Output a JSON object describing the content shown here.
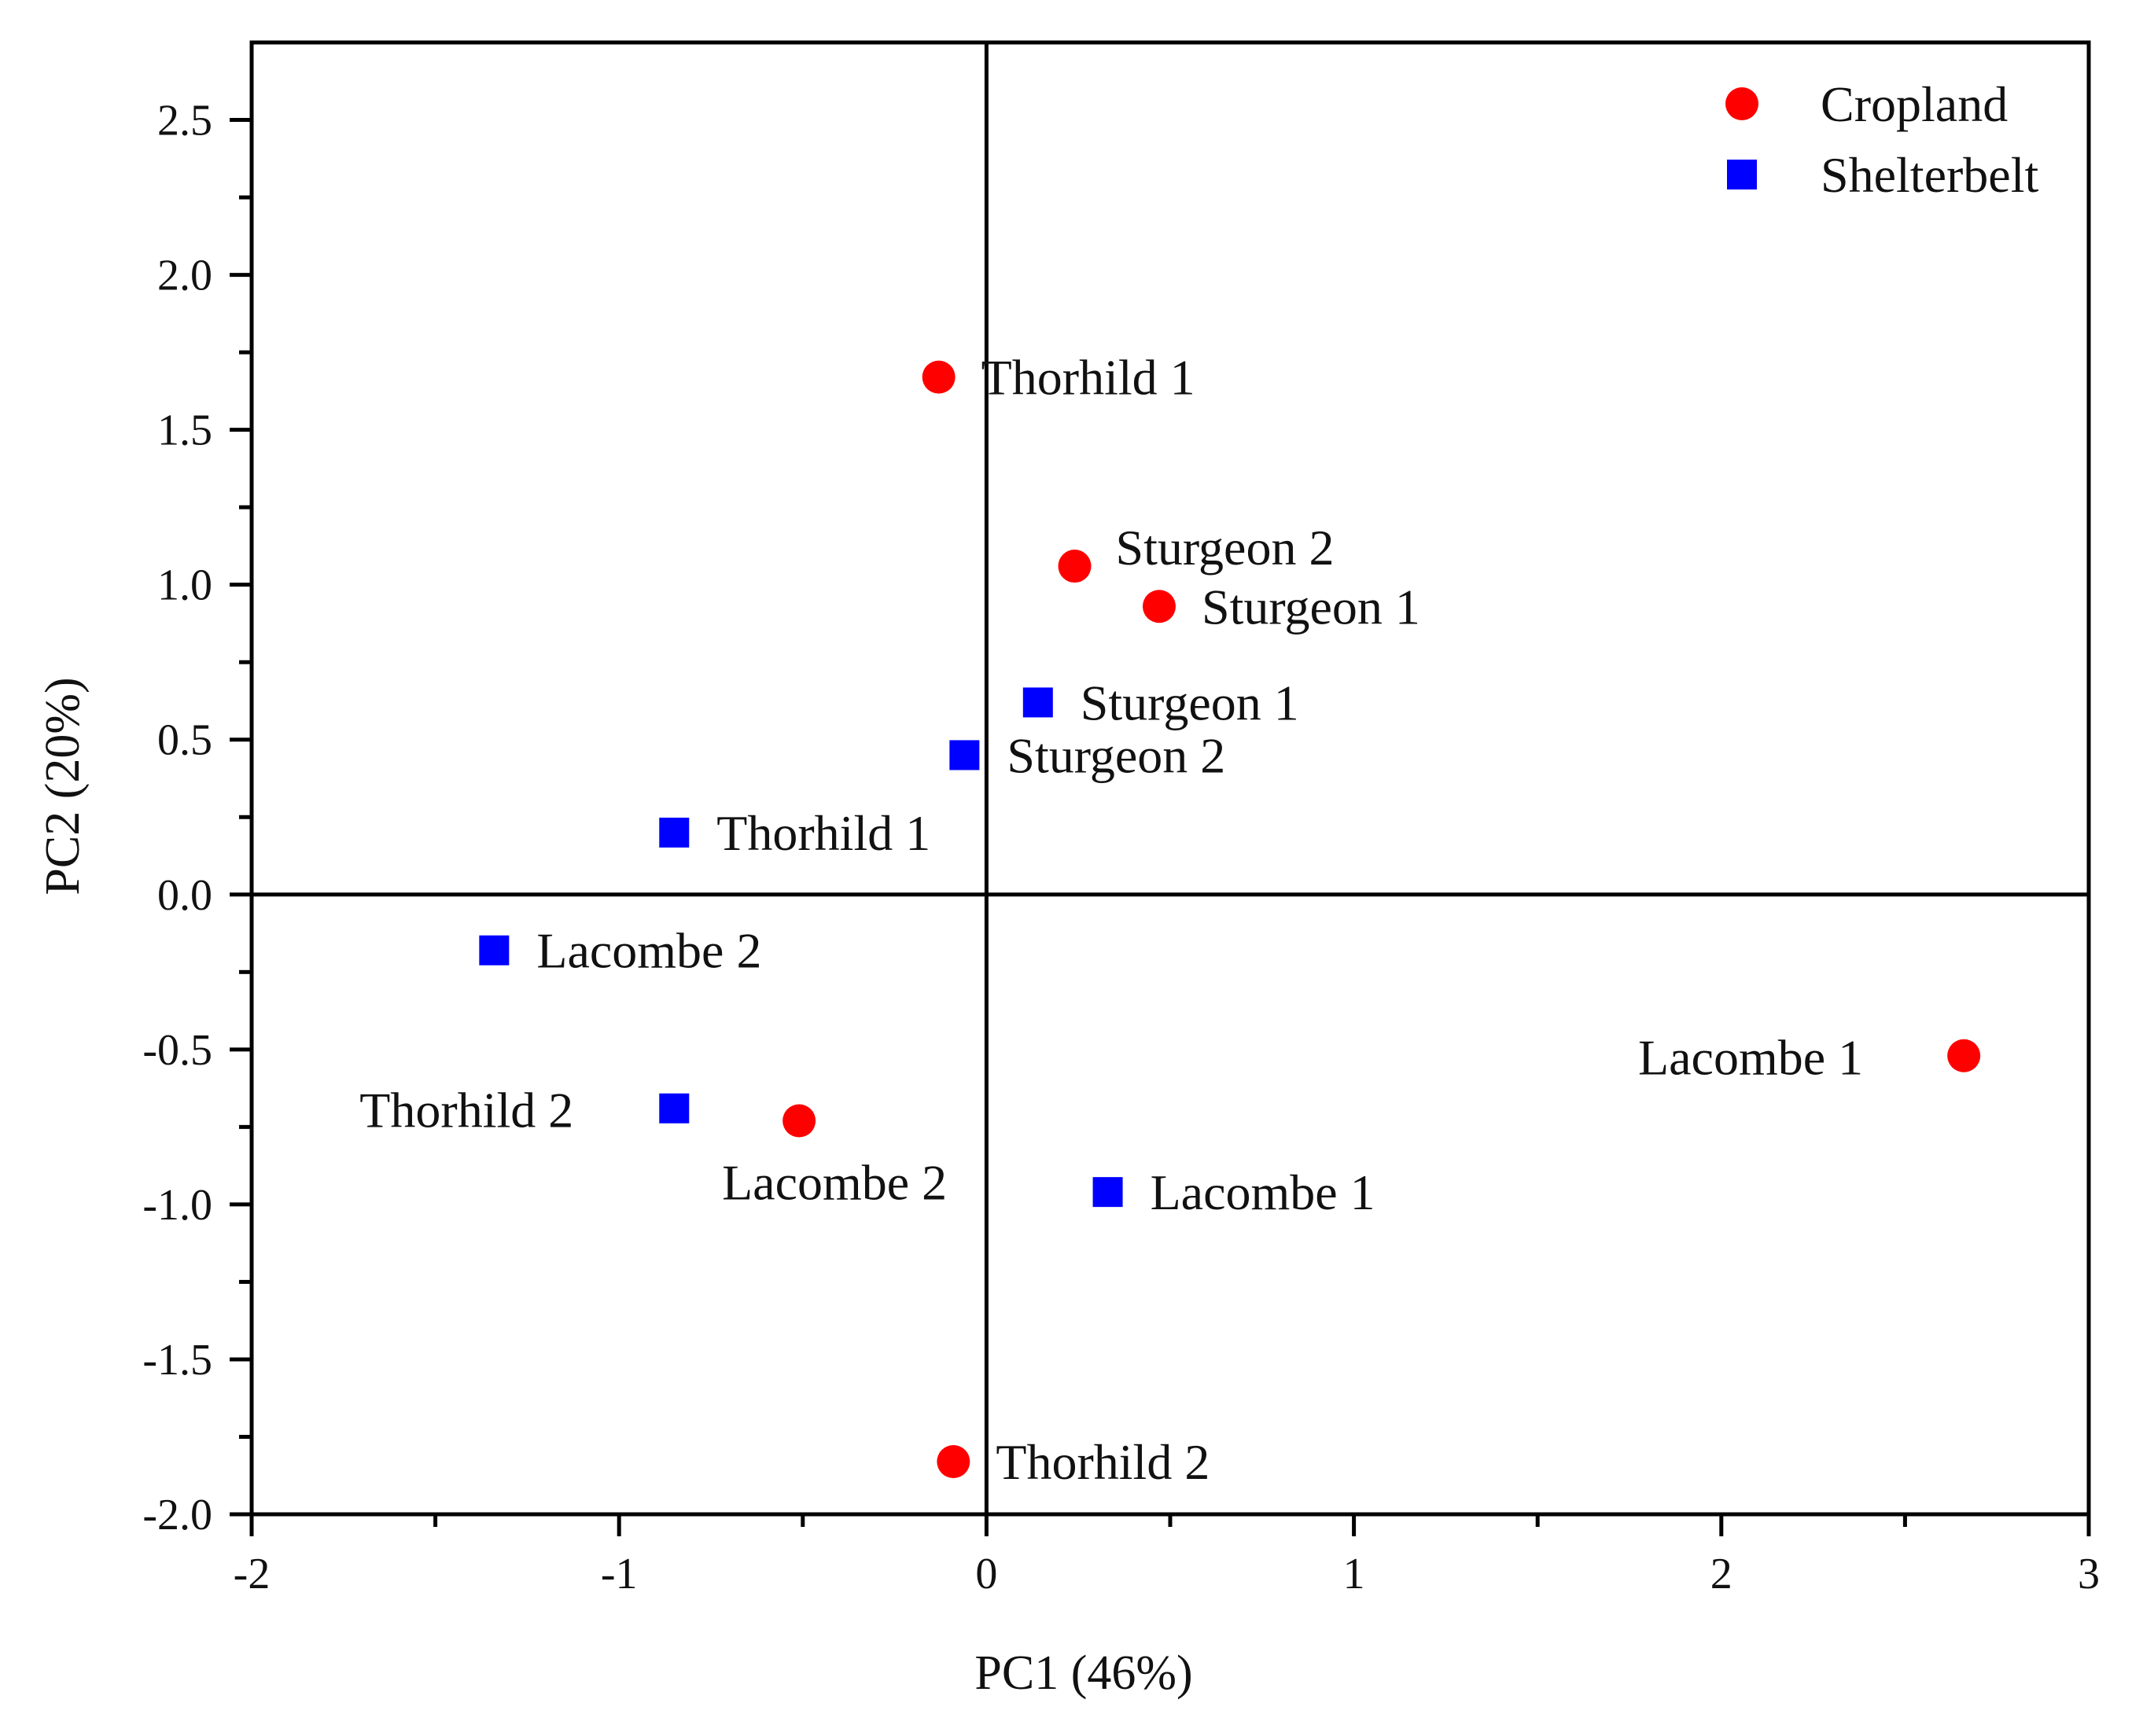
{
  "chart_data": {
    "type": "scatter",
    "title": "",
    "xlabel": "PC1 (46%)",
    "ylabel": "PC2 (20%)",
    "xlim": [
      -2,
      3
    ],
    "ylim": [
      -2.0,
      2.75
    ],
    "xticks": [
      -2,
      -1,
      0,
      1,
      2,
      3
    ],
    "xtick_labels": [
      "-2",
      "-1",
      "0",
      "1",
      "2",
      "3"
    ],
    "yticks": [
      -2.0,
      -1.5,
      -1.0,
      -0.5,
      0.0,
      0.5,
      1.0,
      1.5,
      2.0,
      2.5
    ],
    "ytick_labels": [
      "-2.0",
      "-1.5",
      "-1.0",
      "-0.5",
      "0.0",
      "0.5",
      "1.0",
      "1.5",
      "2.0",
      "2.5"
    ],
    "grid": false,
    "zero_lines": true,
    "legend_position": "top-right",
    "series": [
      {
        "name": "Cropland",
        "marker": "circle",
        "color": "#ff0000",
        "points": [
          {
            "label": "Thorhild 1",
            "x": -0.13,
            "y": 1.67,
            "label_side": "right"
          },
          {
            "label": "Sturgeon 2",
            "x": 0.24,
            "y": 1.06,
            "label_side": "above-right"
          },
          {
            "label": "Sturgeon 1",
            "x": 0.47,
            "y": 0.93,
            "label_side": "right"
          },
          {
            "label": "Lacombe 2",
            "x": -0.51,
            "y": -0.73,
            "label_side": "below"
          },
          {
            "label": "Lacombe 1",
            "x": 2.66,
            "y": -0.52,
            "label_side": "left"
          },
          {
            "label": "Thorhild 2",
            "x": -0.09,
            "y": -1.83,
            "label_side": "right"
          }
        ]
      },
      {
        "name": "Shelterbelt",
        "marker": "square",
        "color": "#0000ff",
        "points": [
          {
            "label": "Sturgeon 1",
            "x": 0.14,
            "y": 0.62,
            "label_side": "right"
          },
          {
            "label": "Sturgeon 2",
            "x": -0.06,
            "y": 0.45,
            "label_side": "right"
          },
          {
            "label": "Thorhild 1",
            "x": -0.85,
            "y": 0.2,
            "label_side": "right"
          },
          {
            "label": "Lacombe 2",
            "x": -1.34,
            "y": -0.18,
            "label_side": "right"
          },
          {
            "label": "Thorhild 2",
            "x": -0.85,
            "y": -0.69,
            "label_side": "left"
          },
          {
            "label": "Lacombe 1",
            "x": 0.33,
            "y": -0.96,
            "label_side": "right"
          }
        ]
      }
    ]
  }
}
